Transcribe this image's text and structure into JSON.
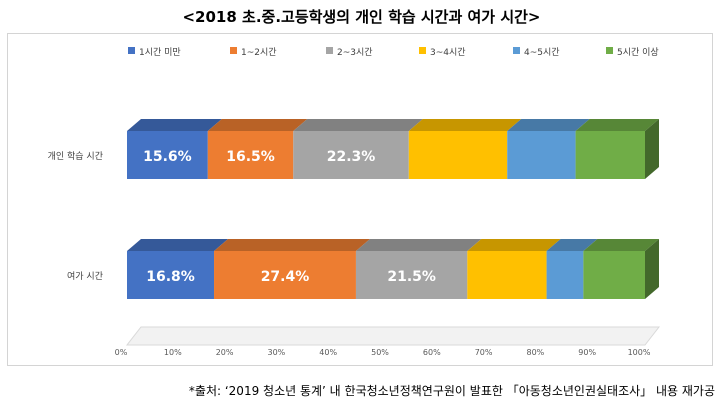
{
  "title": "<2018 초.중.고등학생의 개인 학습 시간과 여가 시간>",
  "source": "*출처: ‘2019 청소년 통계’ 내 한국청소년정책연구원이 발표한 「아동청소년인권실태조사」 내용 재가공",
  "colors": {
    "1시간 미만": "#4472c4",
    "1~2시간": "#ed7d31",
    "2~3시간": "#a5a5a5",
    "3~4시간": "#ffc000",
    "4~5시간": "#5b9bd5",
    "5시간 이상": "#70ad47"
  },
  "chart_data": {
    "type": "bar",
    "orientation": "horizontal",
    "stacked": "100%",
    "style": "3d",
    "categories": [
      "개인 학습 시간",
      "여가 시간"
    ],
    "series": [
      {
        "name": "1시간 미만",
        "values": [
          15.6,
          16.8
        ],
        "labels": [
          "15.6%",
          "16.8%"
        ]
      },
      {
        "name": "1~2시간",
        "values": [
          16.5,
          27.4
        ],
        "labels": [
          "16.5%",
          "27.4%"
        ]
      },
      {
        "name": "2~3시간",
        "values": [
          22.3,
          21.5
        ],
        "labels": [
          "22.3%",
          "21.5%"
        ]
      },
      {
        "name": "3~4시간",
        "values": [
          19.0,
          15.3
        ],
        "labels": [
          "",
          ""
        ]
      },
      {
        "name": "4~5시간",
        "values": [
          13.2,
          7.1
        ],
        "labels": [
          "",
          ""
        ]
      },
      {
        "name": "5시간 이상",
        "values": [
          13.4,
          11.9
        ],
        "labels": [
          "",
          ""
        ]
      }
    ],
    "xlim": [
      0,
      100
    ],
    "xticks": [
      "0%",
      "10%",
      "20%",
      "30%",
      "40%",
      "50%",
      "60%",
      "70%",
      "80%",
      "90%",
      "100%"
    ],
    "legend": "top",
    "grid": false
  }
}
